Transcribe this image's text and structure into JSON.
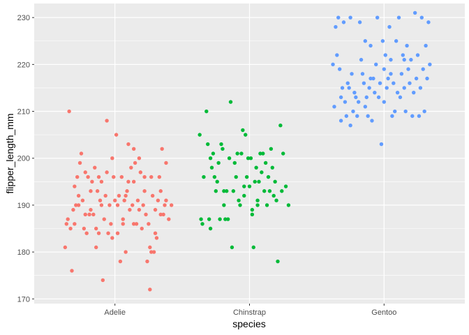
{
  "chart_data": {
    "type": "scatter",
    "title": "",
    "xlabel": "species",
    "ylabel": "flipper_length_mm",
    "categories": [
      "Adelie",
      "Chinstrap",
      "Gentoo"
    ],
    "ylim": [
      169,
      233
    ],
    "yticks": [
      170,
      180,
      190,
      200,
      210,
      220,
      230
    ],
    "grid": true,
    "legend": "none",
    "colors": {
      "Adelie": "#f8766d",
      "Chinstrap": "#00ba38",
      "Gentoo": "#619cff",
      "panel": "#ebebeb",
      "grid": "#ffffff"
    },
    "series": [
      {
        "category": "Adelie",
        "points": [
          [
            0.63,
            181
          ],
          [
            0.65,
            187
          ],
          [
            0.67,
            185
          ],
          [
            0.68,
            176
          ],
          [
            0.7,
            194
          ],
          [
            0.71,
            190
          ],
          [
            0.72,
            196
          ],
          [
            0.73,
            190
          ],
          [
            0.74,
            199
          ],
          [
            0.75,
            201
          ],
          [
            0.76,
            191
          ],
          [
            0.77,
            185
          ],
          [
            0.78,
            197
          ],
          [
            0.79,
            184
          ],
          [
            0.8,
            196
          ],
          [
            0.81,
            188
          ],
          [
            0.82,
            189
          ],
          [
            0.83,
            195
          ],
          [
            0.84,
            188
          ],
          [
            0.85,
            198
          ],
          [
            0.86,
            181
          ],
          [
            0.87,
            193
          ],
          [
            0.88,
            196
          ],
          [
            0.89,
            191
          ],
          [
            0.9,
            195
          ],
          [
            0.91,
            174
          ],
          [
            0.92,
            187
          ],
          [
            0.93,
            192
          ],
          [
            0.94,
            208
          ],
          [
            0.95,
            184
          ],
          [
            0.96,
            190
          ],
          [
            0.97,
            186
          ],
          [
            0.98,
            183
          ],
          [
            0.99,
            196
          ],
          [
            1.0,
            191
          ],
          [
            1.01,
            205
          ],
          [
            1.02,
            184
          ],
          [
            1.03,
            192
          ],
          [
            1.04,
            178
          ],
          [
            1.05,
            196
          ],
          [
            1.06,
            186
          ],
          [
            1.07,
            191
          ],
          [
            1.08,
            192
          ],
          [
            1.09,
            193
          ],
          [
            1.1,
            203
          ],
          [
            1.11,
            189
          ],
          [
            1.12,
            198
          ],
          [
            1.13,
            190
          ],
          [
            1.14,
            195
          ],
          [
            1.15,
            199
          ],
          [
            1.16,
            186
          ],
          [
            1.17,
            191
          ],
          [
            1.18,
            189
          ],
          [
            1.19,
            197
          ],
          [
            1.2,
            185
          ],
          [
            1.21,
            190
          ],
          [
            1.22,
            193
          ],
          [
            1.23,
            188
          ],
          [
            1.24,
            178
          ],
          [
            1.25,
            186
          ],
          [
            1.26,
            181
          ],
          [
            1.27,
            196
          ],
          [
            1.28,
            192
          ],
          [
            1.29,
            180
          ],
          [
            1.3,
            189
          ],
          [
            1.31,
            183
          ],
          [
            1.32,
            191
          ],
          [
            1.33,
            196
          ],
          [
            1.34,
            188
          ],
          [
            1.35,
            202
          ],
          [
            1.36,
            188
          ],
          [
            1.37,
            190
          ],
          [
            1.38,
            199
          ],
          [
            1.4,
            187
          ],
          [
            1.42,
            190
          ],
          [
            0.64,
            186
          ],
          [
            0.69,
            189
          ],
          [
            0.73,
            192
          ],
          [
            0.78,
            188
          ],
          [
            0.82,
            193
          ],
          [
            0.86,
            185
          ],
          [
            0.9,
            190
          ],
          [
            0.94,
            197
          ],
          [
            0.98,
            200
          ],
          [
            1.02,
            190
          ],
          [
            1.06,
            187
          ],
          [
            1.1,
            195
          ],
          [
            1.14,
            186
          ],
          [
            1.18,
            200
          ],
          [
            1.22,
            196
          ],
          [
            1.26,
            172
          ],
          [
            1.3,
            184
          ],
          [
            1.34,
            193
          ],
          [
            1.38,
            191
          ],
          [
            1.14,
            202
          ],
          [
            0.66,
            210
          ],
          [
            0.7,
            186
          ],
          [
            0.88,
            184
          ],
          [
            1.08,
            180
          ],
          [
            1.27,
            180
          ]
        ]
      },
      {
        "category": "Chinstrap",
        "points": [
          [
            1.63,
            205
          ],
          [
            1.64,
            187
          ],
          [
            1.65,
            186
          ],
          [
            1.66,
            196
          ],
          [
            1.68,
            210
          ],
          [
            1.69,
            203
          ],
          [
            1.7,
            187
          ],
          [
            1.71,
            185
          ],
          [
            1.72,
            198
          ],
          [
            1.73,
            201
          ],
          [
            1.74,
            196
          ],
          [
            1.75,
            193
          ],
          [
            1.76,
            195
          ],
          [
            1.77,
            199
          ],
          [
            1.78,
            187
          ],
          [
            1.79,
            203
          ],
          [
            1.8,
            202
          ],
          [
            1.81,
            190
          ],
          [
            1.82,
            187
          ],
          [
            1.83,
            193
          ],
          [
            1.84,
            187
          ],
          [
            1.85,
            200
          ],
          [
            1.86,
            212
          ],
          [
            1.87,
            181
          ],
          [
            1.88,
            193
          ],
          [
            1.89,
            199
          ],
          [
            1.9,
            196
          ],
          [
            1.91,
            201
          ],
          [
            1.92,
            191
          ],
          [
            1.93,
            190
          ],
          [
            1.94,
            201
          ],
          [
            1.95,
            206
          ],
          [
            1.96,
            192
          ],
          [
            1.97,
            205
          ],
          [
            1.98,
            196
          ],
          [
            1.99,
            200
          ],
          [
            2.0,
            194
          ],
          [
            2.01,
            200
          ],
          [
            2.02,
            189
          ],
          [
            2.03,
            181
          ],
          [
            2.04,
            195
          ],
          [
            2.05,
            198
          ],
          [
            2.06,
            191
          ],
          [
            2.07,
            195
          ],
          [
            2.08,
            201
          ],
          [
            2.09,
            197
          ],
          [
            2.1,
            201
          ],
          [
            2.11,
            193
          ],
          [
            2.12,
            199
          ],
          [
            2.13,
            190
          ],
          [
            2.14,
            196
          ],
          [
            2.15,
            193
          ],
          [
            2.16,
            202
          ],
          [
            2.17,
            198
          ],
          [
            2.18,
            192
          ],
          [
            2.19,
            195
          ],
          [
            2.2,
            191
          ],
          [
            2.21,
            178
          ],
          [
            2.23,
            207
          ],
          [
            2.24,
            193
          ],
          [
            2.25,
            201
          ],
          [
            2.27,
            194
          ],
          [
            2.29,
            190
          ],
          [
            1.81,
            193
          ],
          [
            1.71,
            200
          ],
          [
            2.06,
            190
          ],
          [
            2.02,
            188
          ],
          [
            1.96,
            194
          ]
        ]
      },
      {
        "category": "Gentoo",
        "points": [
          [
            2.62,
            220
          ],
          [
            2.63,
            211
          ],
          [
            2.64,
            228
          ],
          [
            2.65,
            222
          ],
          [
            2.66,
            230
          ],
          [
            2.67,
            219
          ],
          [
            2.68,
            208
          ],
          [
            2.69,
            215
          ],
          [
            2.7,
            229
          ],
          [
            2.71,
            212
          ],
          [
            2.72,
            209
          ],
          [
            2.73,
            216
          ],
          [
            2.74,
            215
          ],
          [
            2.75,
            207
          ],
          [
            2.76,
            218
          ],
          [
            2.77,
            210
          ],
          [
            2.78,
            214
          ],
          [
            2.79,
            213
          ],
          [
            2.8,
            209
          ],
          [
            2.81,
            212
          ],
          [
            2.82,
            229
          ],
          [
            2.83,
            221
          ],
          [
            2.84,
            218
          ],
          [
            2.85,
            216
          ],
          [
            2.86,
            225
          ],
          [
            2.87,
            213
          ],
          [
            2.88,
            209
          ],
          [
            2.89,
            215
          ],
          [
            2.9,
            224
          ],
          [
            2.91,
            208
          ],
          [
            2.92,
            217
          ],
          [
            2.93,
            214
          ],
          [
            2.94,
            220
          ],
          [
            2.95,
            230
          ],
          [
            2.96,
            213
          ],
          [
            2.97,
            216
          ],
          [
            2.98,
            203
          ],
          [
            2.99,
            225
          ],
          [
            3.0,
            212
          ],
          [
            3.01,
            222
          ],
          [
            3.02,
            215
          ],
          [
            3.03,
            217
          ],
          [
            3.04,
            228
          ],
          [
            3.05,
            221
          ],
          [
            3.06,
            209
          ],
          [
            3.07,
            216
          ],
          [
            3.08,
            210
          ],
          [
            3.09,
            225
          ],
          [
            3.1,
            214
          ],
          [
            3.11,
            230
          ],
          [
            3.12,
            213
          ],
          [
            3.13,
            218
          ],
          [
            3.14,
            222
          ],
          [
            3.15,
            221
          ],
          [
            3.16,
            210
          ],
          [
            3.17,
            224
          ],
          [
            3.18,
            219
          ],
          [
            3.19,
            216
          ],
          [
            3.2,
            221
          ],
          [
            3.21,
            209
          ],
          [
            3.22,
            214
          ],
          [
            3.23,
            231
          ],
          [
            3.24,
            217
          ],
          [
            3.25,
            222
          ],
          [
            3.26,
            209
          ],
          [
            3.27,
            215
          ],
          [
            3.28,
            230
          ],
          [
            3.29,
            219
          ],
          [
            3.3,
            210
          ],
          [
            3.31,
            224
          ],
          [
            3.32,
            217
          ],
          [
            3.33,
            229
          ],
          [
            3.34,
            220
          ],
          [
            2.75,
            230
          ],
          [
            2.9,
            217
          ],
          [
            3.0,
            219
          ],
          [
            3.15,
            215
          ],
          [
            2.68,
            213
          ],
          [
            2.86,
            211
          ],
          [
            3.05,
            218
          ]
        ]
      }
    ]
  }
}
